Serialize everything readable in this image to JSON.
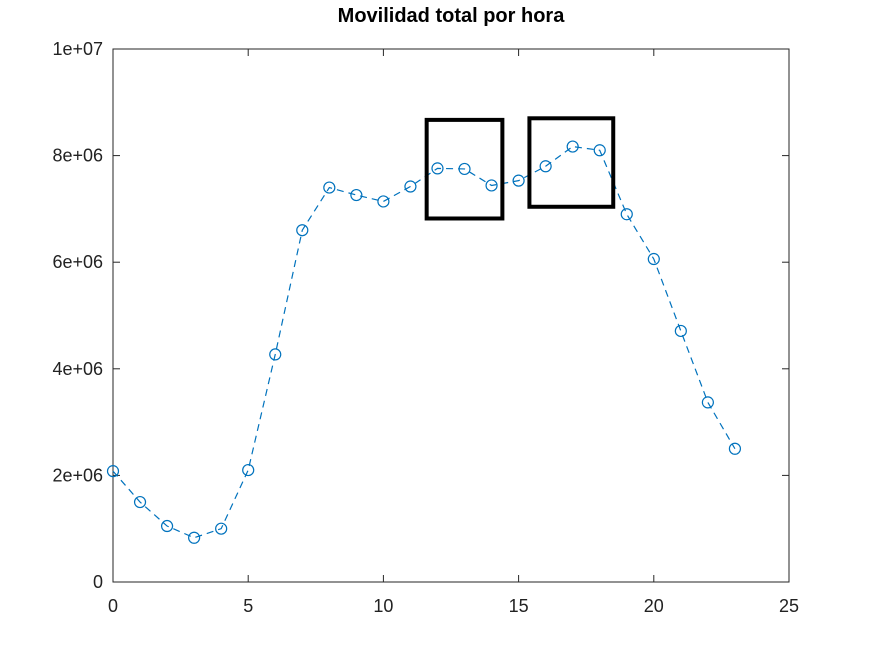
{
  "chart_data": {
    "type": "line",
    "title": "Movilidad total por hora",
    "xlabel": "",
    "ylabel": "",
    "xlim": [
      0,
      25
    ],
    "ylim": [
      0,
      10000000
    ],
    "x_ticks": [
      0,
      5,
      10,
      15,
      20,
      25
    ],
    "x_tick_labels": [
      "0",
      "5",
      "10",
      "15",
      "20",
      "25"
    ],
    "y_ticks": [
      0,
      2000000,
      4000000,
      6000000,
      8000000,
      10000000
    ],
    "y_tick_labels": [
      "0",
      "2e+06",
      "4e+06",
      "6e+06",
      "8e+06",
      "1e+07"
    ],
    "grid": false,
    "series": [
      {
        "color": "#0072bd",
        "line_style": "dashed",
        "marker": "circle",
        "x": [
          0,
          1,
          2,
          3,
          4,
          5,
          6,
          7,
          8,
          9,
          10,
          11,
          12,
          13,
          14,
          15,
          16,
          17,
          18,
          19,
          20,
          21,
          22,
          23
        ],
        "values": [
          2080000,
          1500000,
          1050000,
          830000,
          1000000,
          2100000,
          4270000,
          6600000,
          7400000,
          7260000,
          7140000,
          7420000,
          7760000,
          7750000,
          7440000,
          7530000,
          7800000,
          8170000,
          8100000,
          6900000,
          6060000,
          4710000,
          3370000,
          2500000
        ]
      }
    ],
    "highlight_boxes": [
      {
        "x_range": [
          11.6,
          14.4
        ],
        "y_range": [
          6820000,
          8670000
        ]
      },
      {
        "x_range": [
          15.4,
          18.5
        ],
        "y_range": [
          7040000,
          8700000
        ]
      }
    ]
  }
}
